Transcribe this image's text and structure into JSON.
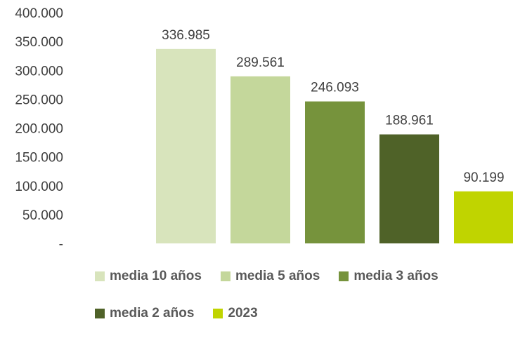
{
  "chart_data": {
    "type": "bar",
    "categories": [
      "media 10 años",
      "media 5 años",
      "media 3 años",
      "media 2 años",
      "2023"
    ],
    "values": [
      336985,
      289561,
      246093,
      188961,
      90199
    ],
    "data_labels": [
      "336.985",
      "289.561",
      "246.093",
      "188.961",
      "90.199"
    ],
    "colors": [
      "#d8e4bc",
      "#c4d79b",
      "#76933c",
      "#4f6228",
      "#c0d400"
    ],
    "yticks": [
      "-",
      "50.000",
      "100.000",
      "150.000",
      "200.000",
      "250.000",
      "300.000",
      "350.000",
      "400.000"
    ],
    "ylim": [
      0,
      400000
    ],
    "grid": false,
    "legend_position": "bottom"
  }
}
